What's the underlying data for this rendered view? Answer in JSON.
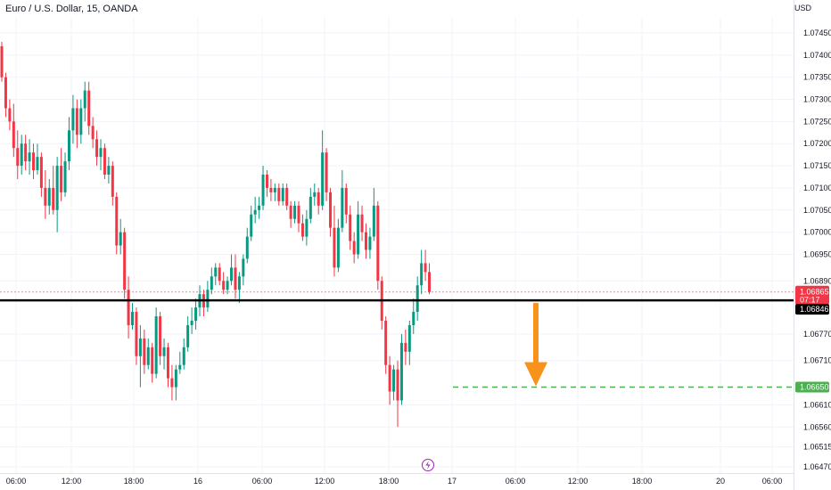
{
  "header": {
    "title": "Euro / U.S. Dollar, 15, OANDA",
    "currency": "USD"
  },
  "chart_data": {
    "type": "candlestick",
    "yticks": [
      "1.07450",
      "1.07400",
      "1.07350",
      "1.07300",
      "1.07250",
      "1.07200",
      "1.07150",
      "1.07100",
      "1.07050",
      "1.07000",
      "1.06950",
      "1.06890",
      "1.06770",
      "1.06710",
      "1.06610",
      "1.06560",
      "1.06515",
      "1.06470"
    ],
    "xticks": [
      "06:00",
      "12:00",
      "18:00",
      "16",
      "06:00",
      "12:00",
      "18:00",
      "17",
      "06:00",
      "12:00",
      "18:00",
      "20",
      "06:00"
    ],
    "ylim": [
      1.06465,
      1.07485
    ],
    "price_tag": {
      "value": "1.06865",
      "countdown": "07:17",
      "color": "#f23645"
    },
    "level_tag": {
      "value": "1.06846",
      "color": "#000000"
    },
    "target_tag": {
      "value": "1.06650",
      "color": "#4caf50"
    },
    "arrow_color": "#f7931a",
    "up_color": "#089981",
    "down_color": "#f23645",
    "candles": [
      [
        1.0742,
        1.0743,
        1.0734,
        1.0735
      ],
      [
        1.0735,
        1.0736,
        1.0726,
        1.0728
      ],
      [
        1.0728,
        1.073,
        1.0723,
        1.0725
      ],
      [
        1.0725,
        1.0729,
        1.0717,
        1.0719
      ],
      [
        1.0719,
        1.0723,
        1.0712,
        1.0715
      ],
      [
        1.0715,
        1.0722,
        1.0713,
        1.072
      ],
      [
        1.072,
        1.0722,
        1.0714,
        1.0716
      ],
      [
        1.0716,
        1.0721,
        1.0713,
        1.0718
      ],
      [
        1.0718,
        1.072,
        1.0712,
        1.0714
      ],
      [
        1.0714,
        1.072,
        1.0713,
        1.0717
      ],
      [
        1.0717,
        1.0718,
        1.0708,
        1.071
      ],
      [
        1.071,
        1.0714,
        1.0703,
        1.0706
      ],
      [
        1.0706,
        1.0712,
        1.0704,
        1.071
      ],
      [
        1.071,
        1.0715,
        1.0704,
        1.0705
      ],
      [
        1.0705,
        1.0717,
        1.07,
        1.0715
      ],
      [
        1.0715,
        1.0719,
        1.0707,
        1.0709
      ],
      [
        1.0709,
        1.0718,
        1.0708,
        1.0716
      ],
      [
        1.0716,
        1.0726,
        1.0714,
        1.0723
      ],
      [
        1.0723,
        1.0731,
        1.072,
        1.0728
      ],
      [
        1.0728,
        1.073,
        1.0719,
        1.0722
      ],
      [
        1.0722,
        1.073,
        1.072,
        1.0728
      ],
      [
        1.0728,
        1.0734,
        1.0725,
        1.0732
      ],
      [
        1.0732,
        1.0734,
        1.0722,
        1.0724
      ],
      [
        1.0724,
        1.0726,
        1.0719,
        1.0721
      ],
      [
        1.0721,
        1.0723,
        1.0715,
        1.0717
      ],
      [
        1.0717,
        1.0721,
        1.0714,
        1.0719
      ],
      [
        1.0719,
        1.072,
        1.0712,
        1.0713
      ],
      [
        1.0713,
        1.0717,
        1.0711,
        1.0715
      ],
      [
        1.0715,
        1.0716,
        1.0706,
        1.0708
      ],
      [
        1.0708,
        1.0709,
        1.0695,
        1.0697
      ],
      [
        1.0697,
        1.0703,
        1.0695,
        1.07
      ],
      [
        1.07,
        1.0701,
        1.0685,
        1.0687
      ],
      [
        1.0687,
        1.069,
        1.0676,
        1.0679
      ],
      [
        1.0679,
        1.0684,
        1.0678,
        1.0682
      ],
      [
        1.0682,
        1.0683,
        1.067,
        1.0672
      ],
      [
        1.0672,
        1.0679,
        1.0665,
        1.0676
      ],
      [
        1.0676,
        1.0678,
        1.0668,
        1.067
      ],
      [
        1.067,
        1.0676,
        1.0669,
        1.0674
      ],
      [
        1.0674,
        1.0675,
        1.0666,
        1.0668
      ],
      [
        1.0668,
        1.0683,
        1.0667,
        1.0681
      ],
      [
        1.0681,
        1.0682,
        1.067,
        1.0672
      ],
      [
        1.0672,
        1.0676,
        1.0669,
        1.0674
      ],
      [
        1.0674,
        1.0675,
        1.0665,
        1.0667
      ],
      [
        1.0667,
        1.067,
        1.0662,
        1.0665
      ],
      [
        1.0665,
        1.067,
        1.0662,
        1.0669
      ],
      [
        1.0669,
        1.0673,
        1.0668,
        1.067
      ],
      [
        1.067,
        1.0676,
        1.0669,
        1.0674
      ],
      [
        1.0674,
        1.0681,
        1.0673,
        1.0679
      ],
      [
        1.0679,
        1.0683,
        1.0677,
        1.068
      ],
      [
        1.068,
        1.0685,
        1.0678,
        1.0683
      ],
      [
        1.0683,
        1.0688,
        1.0681,
        1.0686
      ],
      [
        1.0686,
        1.0687,
        1.0681,
        1.0683
      ],
      [
        1.0683,
        1.0689,
        1.0682,
        1.0687
      ],
      [
        1.0687,
        1.0692,
        1.0686,
        1.069
      ],
      [
        1.069,
        1.0693,
        1.0688,
        1.0692
      ],
      [
        1.0692,
        1.0693,
        1.0688,
        1.0689
      ],
      [
        1.0689,
        1.0691,
        1.0686,
        1.0687
      ],
      [
        1.0687,
        1.069,
        1.0686,
        1.0689
      ],
      [
        1.0689,
        1.0695,
        1.0688,
        1.0692
      ],
      [
        1.0692,
        1.0695,
        1.0685,
        1.0687
      ],
      [
        1.0687,
        1.0691,
        1.0684,
        1.069
      ],
      [
        1.069,
        1.0695,
        1.0688,
        1.0694
      ],
      [
        1.0694,
        1.0701,
        1.0693,
        1.0699
      ],
      [
        1.0699,
        1.0706,
        1.0698,
        1.0704
      ],
      [
        1.0704,
        1.0708,
        1.0702,
        1.0705
      ],
      [
        1.0705,
        1.0708,
        1.0703,
        1.0706
      ],
      [
        1.0706,
        1.0715,
        1.0705,
        1.0713
      ],
      [
        1.0713,
        1.0714,
        1.0708,
        1.071
      ],
      [
        1.071,
        1.0712,
        1.0707,
        1.0709
      ],
      [
        1.0709,
        1.0711,
        1.0707,
        1.071
      ],
      [
        1.071,
        1.0711,
        1.0706,
        1.0707
      ],
      [
        1.0707,
        1.0711,
        1.0706,
        1.071
      ],
      [
        1.071,
        1.0711,
        1.0705,
        1.0706
      ],
      [
        1.0706,
        1.0707,
        1.0701,
        1.0703
      ],
      [
        1.0703,
        1.0707,
        1.0702,
        1.0706
      ],
      [
        1.0706,
        1.0707,
        1.07,
        1.0702
      ],
      [
        1.0702,
        1.0704,
        1.0698,
        1.0699
      ],
      [
        1.0699,
        1.0705,
        1.0697,
        1.0703
      ],
      [
        1.0703,
        1.071,
        1.0702,
        1.0708
      ],
      [
        1.0708,
        1.0711,
        1.0706,
        1.0709
      ],
      [
        1.0709,
        1.071,
        1.0704,
        1.0706
      ],
      [
        1.0706,
        1.0723,
        1.0705,
        1.0718
      ],
      [
        1.0718,
        1.0719,
        1.0707,
        1.0709
      ],
      [
        1.0709,
        1.071,
        1.0699,
        1.0701
      ],
      [
        1.0701,
        1.0706,
        1.069,
        1.0692
      ],
      [
        1.0692,
        1.0703,
        1.0691,
        1.0701
      ],
      [
        1.0701,
        1.0714,
        1.07,
        1.071
      ],
      [
        1.071,
        1.0711,
        1.0702,
        1.0704
      ],
      [
        1.0704,
        1.0706,
        1.0696,
        1.0698
      ],
      [
        1.0698,
        1.07,
        1.0693,
        1.0695
      ],
      [
        1.0695,
        1.0707,
        1.0694,
        1.0704
      ],
      [
        1.0704,
        1.0706,
        1.0698,
        1.07
      ],
      [
        1.07,
        1.0702,
        1.0694,
        1.0696
      ],
      [
        1.0696,
        1.0701,
        1.0694,
        1.0699
      ],
      [
        1.0699,
        1.071,
        1.0698,
        1.0706
      ],
      [
        1.0706,
        1.0707,
        1.0687,
        1.0689
      ],
      [
        1.0689,
        1.069,
        1.0678,
        1.068
      ],
      [
        1.068,
        1.0681,
        1.0668,
        1.067
      ],
      [
        1.067,
        1.0672,
        1.0661,
        1.0664
      ],
      [
        1.0664,
        1.067,
        1.0662,
        1.0669
      ],
      [
        1.0669,
        1.0671,
        1.0656,
        1.0662
      ],
      [
        1.0662,
        1.0677,
        1.0661,
        1.0675
      ],
      [
        1.0675,
        1.0678,
        1.067,
        1.0673
      ],
      [
        1.0673,
        1.068,
        1.067,
        1.0679
      ],
      [
        1.0679,
        1.0685,
        1.0677,
        1.0682
      ],
      [
        1.0682,
        1.069,
        1.068,
        1.0688
      ],
      [
        1.0688,
        1.0696,
        1.0686,
        1.0693
      ],
      [
        1.0693,
        1.0696,
        1.0689,
        1.0691
      ],
      [
        1.0691,
        1.0693,
        1.0686,
        1.06865
      ]
    ]
  }
}
